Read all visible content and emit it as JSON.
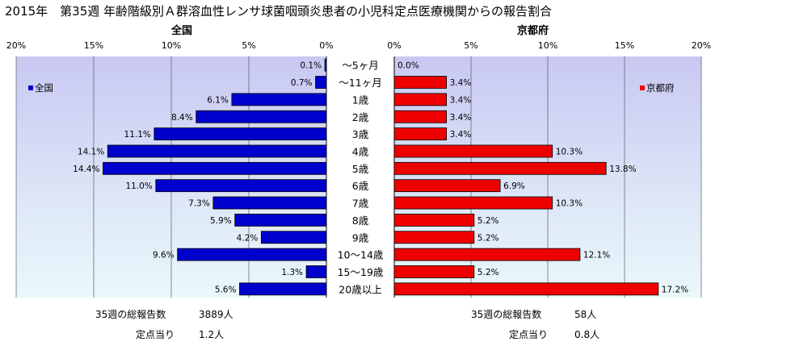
{
  "title": "2015年　第35週 年齢階級別Ａ群溶血性レンサ球菌咽頭炎患者の小児科定点医療機関からの報告割合",
  "chart_data": [
    {
      "type": "bar",
      "orientation": "horizontal",
      "panel_title": "全国",
      "legend": "全国",
      "legend_position": "top-left",
      "color": "#0000cc",
      "xlim": [
        0,
        20
      ],
      "x_direction": "reversed",
      "ticks": [
        "0%",
        "5%",
        "10%",
        "15%",
        "20%"
      ],
      "grid": true,
      "categories": [
        "～5ヶ月",
        "～11ヶ月",
        "1歳",
        "2歳",
        "3歳",
        "4歳",
        "5歳",
        "6歳",
        "7歳",
        "8歳",
        "9歳",
        "10～14歳",
        "15～19歳",
        "20歳以上"
      ],
      "values": [
        0.1,
        0.7,
        6.1,
        8.4,
        11.1,
        14.1,
        14.4,
        11.0,
        7.3,
        5.9,
        4.2,
        9.6,
        1.3,
        5.6
      ],
      "labels": [
        "0.1%",
        "0.7%",
        "6.1%",
        "8.4%",
        "11.1%",
        "14.1%",
        "14.4%",
        "11.0%",
        "7.3%",
        "5.9%",
        "4.2%",
        "9.6%",
        "1.3%",
        "5.6%"
      ],
      "total_label": "35週の総報告数",
      "total_value": "3889人",
      "per_site_label": "定点当り",
      "per_site_value": "1.2人"
    },
    {
      "type": "bar",
      "orientation": "horizontal",
      "panel_title": "京都府",
      "legend": "京都府",
      "legend_position": "top-right",
      "color": "#ee0000",
      "xlim": [
        0,
        20
      ],
      "ticks": [
        "0%",
        "5%",
        "10%",
        "15%",
        "20%"
      ],
      "grid": true,
      "categories": [
        "～5ヶ月",
        "～11ヶ月",
        "1歳",
        "2歳",
        "3歳",
        "4歳",
        "5歳",
        "6歳",
        "7歳",
        "8歳",
        "9歳",
        "10～14歳",
        "15～19歳",
        "20歳以上"
      ],
      "values": [
        0.0,
        3.4,
        3.4,
        3.4,
        3.4,
        10.3,
        13.8,
        6.9,
        10.3,
        5.2,
        5.2,
        12.1,
        5.2,
        17.2
      ],
      "labels": [
        "0.0%",
        "3.4%",
        "3.4%",
        "3.4%",
        "3.4%",
        "10.3%",
        "13.8%",
        "6.9%",
        "10.3%",
        "5.2%",
        "5.2%",
        "12.1%",
        "5.2%",
        "17.2%"
      ],
      "total_label": "35週の総報告数",
      "total_value": "58人",
      "per_site_label": "定点当り",
      "per_site_value": "0.8人"
    }
  ]
}
